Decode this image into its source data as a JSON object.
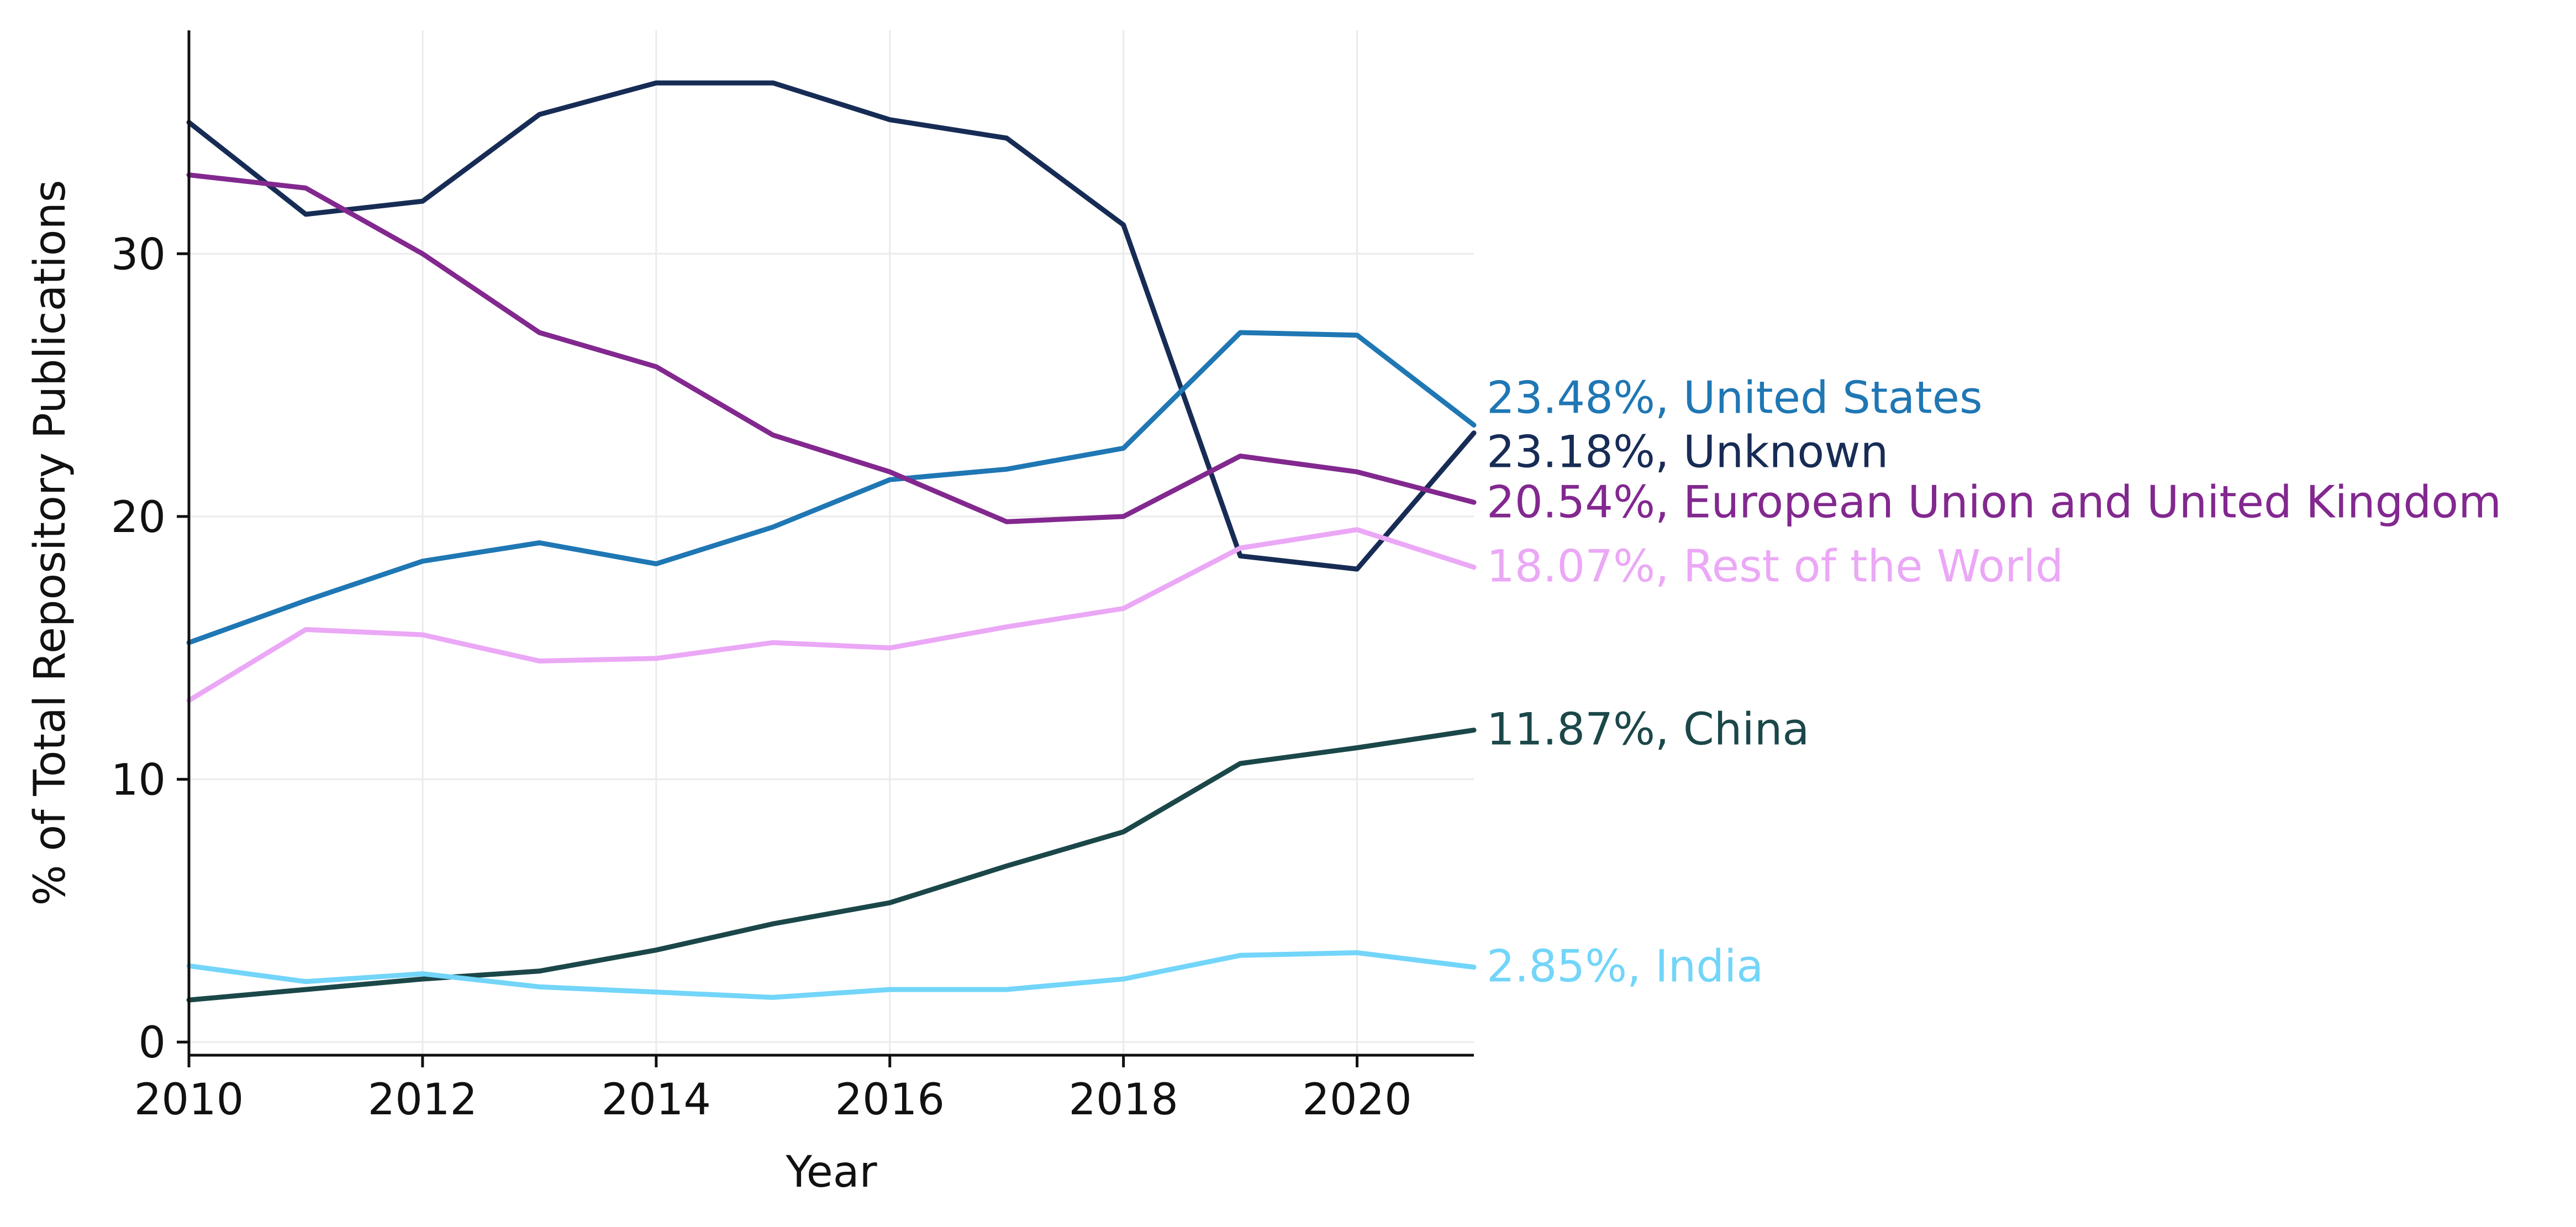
{
  "chart_data": {
    "type": "line",
    "title": "",
    "xlabel": "Year",
    "ylabel": "% of Total Repository Publications",
    "xlim": [
      2010,
      2021
    ],
    "ylim": [
      -0.5,
      38.5
    ],
    "xticks": [
      2010,
      2012,
      2014,
      2016,
      2018,
      2020
    ],
    "xtick_labels": [
      "2010",
      "2012",
      "2014",
      "2016",
      "2018",
      "2020"
    ],
    "yticks": [
      0,
      10,
      20,
      30
    ],
    "ytick_labels": [
      "0",
      "10",
      "20",
      "30"
    ],
    "grid": true,
    "legend": "end-of-line labels",
    "x": [
      2010,
      2011,
      2012,
      2013,
      2014,
      2015,
      2016,
      2017,
      2018,
      2019,
      2020,
      2021
    ],
    "series": [
      {
        "name": "Unknown",
        "color": "#172c55",
        "label": "23.18%, Unknown",
        "values": [
          35.0,
          31.5,
          32.0,
          35.3,
          36.5,
          36.5,
          35.1,
          34.4,
          31.1,
          18.5,
          18.0,
          23.18
        ]
      },
      {
        "name": "United States",
        "color": "#1f77b4",
        "label": "23.48%, United States",
        "values": [
          15.2,
          16.8,
          18.3,
          19.0,
          18.2,
          19.6,
          21.4,
          21.8,
          22.6,
          27.0,
          26.9,
          23.48
        ]
      },
      {
        "name": "European Union and United Kingdom",
        "color": "#82288f",
        "label": "20.54%, European Union and United Kingdom",
        "values": [
          33.0,
          32.5,
          30.0,
          27.0,
          25.7,
          23.1,
          21.7,
          19.8,
          20.0,
          22.3,
          21.7,
          20.54
        ]
      },
      {
        "name": "Rest of the World",
        "color": "#eba8f6",
        "label": "18.07%, Rest of the World",
        "values": [
          13.0,
          15.7,
          15.5,
          14.5,
          14.6,
          15.2,
          15.0,
          15.8,
          16.5,
          18.8,
          19.5,
          18.07
        ]
      },
      {
        "name": "China",
        "color": "#1b4749",
        "label": "11.87%, China",
        "values": [
          1.6,
          2.0,
          2.4,
          2.7,
          3.5,
          4.5,
          5.3,
          6.7,
          8.0,
          10.6,
          11.2,
          11.87
        ]
      },
      {
        "name": "India",
        "color": "#72d5f9",
        "label": "2.85%, India",
        "values": [
          2.9,
          2.3,
          2.6,
          2.1,
          1.9,
          1.7,
          2.0,
          2.0,
          2.4,
          3.3,
          3.4,
          2.85
        ]
      }
    ]
  }
}
